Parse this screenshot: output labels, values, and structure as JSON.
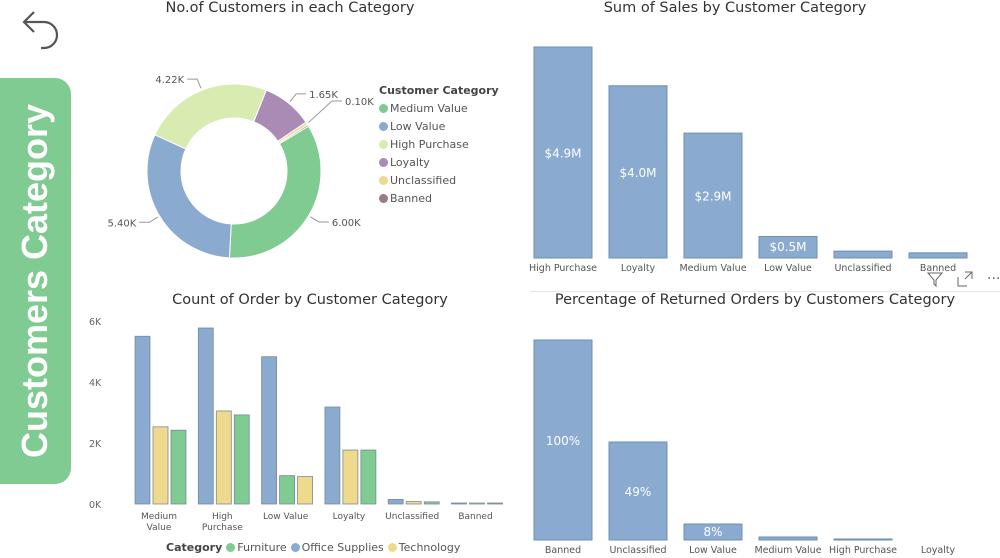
{
  "banner": {
    "text": "Customers Category"
  },
  "colors": {
    "Medium Value": "#7fcb92",
    "Low Value": "#8aaacf",
    "High Purchase": "#d8ebb0",
    "Loyalty": "#a98bb5",
    "Unclassified": "#efd98c",
    "Banned": "#9c7a8c",
    "Furniture": "#7fcb92",
    "Office Supplies": "#8aaacf",
    "Technology": "#efd98c",
    "bar": "#8aaacf",
    "banner": "#7fcb92"
  },
  "donut": {
    "title": "No.of Customers in each Category",
    "legend_title": "Customer Category",
    "chart_data": {
      "type": "pie",
      "title": "No.of Customers in each Category",
      "legend": "right",
      "slices": [
        {
          "name": "Medium Value",
          "value": 6.0,
          "label": "6.00K"
        },
        {
          "name": "Low Value",
          "value": 5.4,
          "label": "5.40K"
        },
        {
          "name": "High Purchase",
          "value": 4.22,
          "label": "4.22K"
        },
        {
          "name": "Loyalty",
          "value": 1.65,
          "label": "1.65K"
        },
        {
          "name": "Unclassified",
          "value": 0.1,
          "label": "0.10K"
        },
        {
          "name": "Banned",
          "value": 0.05,
          "label": ""
        }
      ]
    }
  },
  "sales": {
    "title": "Sum of Sales by Customer Category",
    "chart_data": {
      "type": "bar",
      "title": "Sum of Sales by Customer Category",
      "categories": [
        "High Purchase",
        "Loyalty",
        "Medium Value",
        "Low Value",
        "Unclassified",
        "Banned"
      ],
      "values": [
        4.9,
        4.0,
        2.9,
        0.5,
        0.16,
        0.12
      ],
      "data_labels": [
        "$4.9M",
        "$4.0M",
        "$2.9M",
        "$0.5M",
        "",
        ""
      ],
      "ylim": [
        0,
        4.9
      ],
      "unit": "$M"
    }
  },
  "orders": {
    "title": "Count of Order by Customer Category",
    "legend_title": "Category",
    "chart_data": {
      "type": "bar",
      "title": "Count of Order by Customer Category",
      "categories": [
        "Medium Value",
        "High Purchase",
        "Low Value",
        "Loyalty",
        "Unclassified",
        "Banned"
      ],
      "yticks": [
        "0K",
        "2K",
        "4K",
        "6K"
      ],
      "ylim": [
        0,
        6
      ],
      "legend": "bottom",
      "series": [
        {
          "name": "Office Supplies",
          "values": [
            5.5,
            5.77,
            4.83,
            3.18,
            0.15,
            0.02
          ]
        },
        {
          "name": "Technology",
          "values": [
            2.53,
            3.05,
            0.9,
            1.77,
            0.08,
            0.02
          ]
        },
        {
          "name": "Furniture",
          "values": [
            2.42,
            2.92,
            0.93,
            1.77,
            0.07,
            0.02
          ]
        }
      ],
      "bar_order": [
        [
          "Office Supplies",
          "Technology",
          "Furniture"
        ],
        [
          "Office Supplies",
          "Technology",
          "Furniture"
        ],
        [
          "Office Supplies",
          "Furniture",
          "Technology"
        ],
        [
          "Office Supplies",
          "Technology",
          "Furniture"
        ],
        [
          "Office Supplies",
          "Technology",
          "Furniture"
        ],
        [
          "Office Supplies",
          "Technology",
          "Furniture"
        ]
      ],
      "legend_order": [
        "Furniture",
        "Office Supplies",
        "Technology"
      ]
    }
  },
  "returns": {
    "title": "Percentage of Returned Orders by Customers Category",
    "chart_data": {
      "type": "bar",
      "title": "Percentage of Returned Orders by Customers Category",
      "categories": [
        "Banned",
        "Unclassified",
        "Low Value",
        "Medium Value",
        "High Purchase",
        "Loyalty"
      ],
      "values": [
        100,
        49,
        8,
        1.5,
        0.5,
        0
      ],
      "data_labels": [
        "100%",
        "49%",
        "8%",
        "",
        "",
        ""
      ],
      "ylim": [
        0,
        100
      ]
    }
  },
  "visual_header": {
    "icons": [
      "filter-icon",
      "focus-mode-icon",
      "more-options-icon"
    ]
  }
}
